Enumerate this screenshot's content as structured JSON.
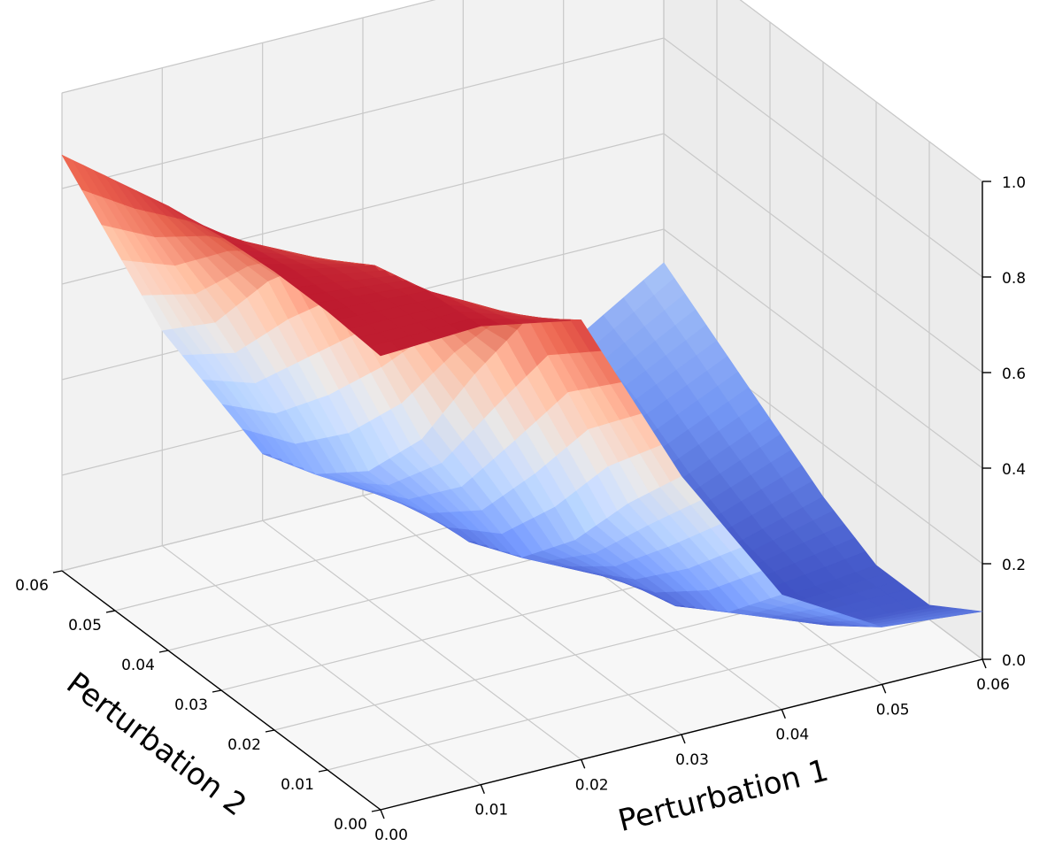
{
  "chart_data": {
    "type": "surface3d",
    "title": "",
    "colormap": "coolwarm",
    "colormap_stops": [
      "#3b4cc0",
      "#7396f5",
      "#b0cbfc",
      "#dddcdc",
      "#f6b89c",
      "#dd5f4b",
      "#b40426"
    ],
    "x_axis": {
      "label": "Perturbation 1",
      "range": [
        0,
        0.06
      ],
      "ticks": [
        "0.00",
        "0.01",
        "0.02",
        "0.03",
        "0.04",
        "0.05",
        "0.06"
      ]
    },
    "y_axis": {
      "label": "Perturbation 2",
      "range": [
        0,
        0.06
      ],
      "ticks": [
        "0.00",
        "0.01",
        "0.02",
        "0.03",
        "0.04",
        "0.05",
        "0.06"
      ]
    },
    "z_axis": {
      "label": "",
      "range": [
        0,
        1
      ],
      "ticks": [
        "0.0",
        "0.2",
        "0.4",
        "0.6",
        "0.8",
        "1.0"
      ]
    },
    "x": [
      0,
      0.01,
      0.02,
      0.03,
      0.04,
      0.05,
      0.06
    ],
    "y": [
      0,
      0.01,
      0.02,
      0.03,
      0.04,
      0.05,
      0.06
    ],
    "z": [
      [
        0.95,
        0.96,
        0.92,
        0.54,
        0.24,
        0.12,
        0.1
      ],
      [
        0.96,
        0.95,
        0.84,
        0.4,
        0.12,
        0.04,
        0.03
      ],
      [
        0.96,
        0.92,
        0.64,
        0.24,
        0.05,
        0.01,
        0.03
      ],
      [
        0.95,
        0.85,
        0.42,
        0.12,
        0.02,
        0.03,
        0.09
      ],
      [
        0.93,
        0.72,
        0.27,
        0.07,
        0.02,
        0.08,
        0.17
      ],
      [
        0.9,
        0.55,
        0.18,
        0.06,
        0.05,
        0.15,
        0.25
      ],
      [
        0.87,
        0.45,
        0.14,
        0.06,
        0.09,
        0.2,
        0.33
      ]
    ],
    "grid": true
  }
}
